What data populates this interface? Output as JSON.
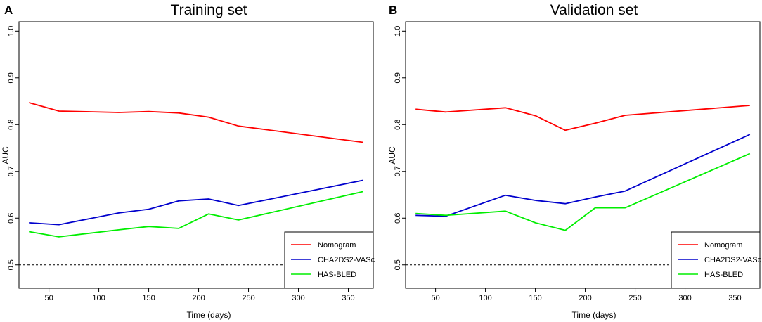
{
  "chart_data": [
    {
      "type": "line",
      "panel": "A",
      "title": "Training set",
      "xlabel": "Time (days)",
      "ylabel": "AUC",
      "xlim": [
        20,
        375
      ],
      "ylim": [
        0.45,
        1.02
      ],
      "xticks": [
        50,
        100,
        150,
        200,
        250,
        300,
        350
      ],
      "yticks": [
        0.5,
        0.6,
        0.7,
        0.8,
        0.9,
        1.0
      ],
      "ytick_labels": [
        "0.5",
        "0.6",
        "0.7",
        "0.8",
        "0.9",
        "1.0"
      ],
      "reference_line": 0.5,
      "legend_position": "bottom-right",
      "x": [
        30,
        60,
        120,
        150,
        180,
        210,
        240,
        365
      ],
      "series": [
        {
          "name": "Nomogram",
          "color": "#ff0000",
          "values": [
            0.847,
            0.829,
            0.826,
            0.828,
            0.825,
            0.816,
            0.797,
            0.762
          ]
        },
        {
          "name": "CHA2DS2-VASc",
          "color": "#0000cc",
          "values": [
            0.59,
            0.586,
            0.611,
            0.619,
            0.637,
            0.641,
            0.627,
            0.681
          ]
        },
        {
          "name": "HAS-BLED",
          "color": "#00ee00",
          "values": [
            0.571,
            0.56,
            0.575,
            0.582,
            0.578,
            0.609,
            0.596,
            0.657
          ]
        }
      ]
    },
    {
      "type": "line",
      "panel": "B",
      "title": "Validation set",
      "xlabel": "Time (days)",
      "ylabel": "AUC",
      "xlim": [
        20,
        375
      ],
      "ylim": [
        0.45,
        1.02
      ],
      "xticks": [
        50,
        100,
        150,
        200,
        250,
        300,
        350
      ],
      "yticks": [
        0.5,
        0.6,
        0.7,
        0.8,
        0.9,
        1.0
      ],
      "ytick_labels": [
        "0.5",
        "0.6",
        "0.7",
        "0.8",
        "0.9",
        "1.0"
      ],
      "reference_line": 0.5,
      "legend_position": "bottom-right",
      "x": [
        30,
        60,
        120,
        150,
        180,
        210,
        240,
        365
      ],
      "series": [
        {
          "name": "Nomogram",
          "color": "#ff0000",
          "values": [
            0.833,
            0.827,
            0.836,
            0.819,
            0.788,
            0.803,
            0.82,
            0.841
          ]
        },
        {
          "name": "CHA2DS2-VASc",
          "color": "#0000cc",
          "values": [
            0.606,
            0.604,
            0.649,
            0.638,
            0.631,
            0.645,
            0.658,
            0.779
          ]
        },
        {
          "name": "HAS-BLED",
          "color": "#00ee00",
          "values": [
            0.61,
            0.606,
            0.615,
            0.59,
            0.574,
            0.622,
            0.622,
            0.738
          ]
        }
      ]
    }
  ]
}
